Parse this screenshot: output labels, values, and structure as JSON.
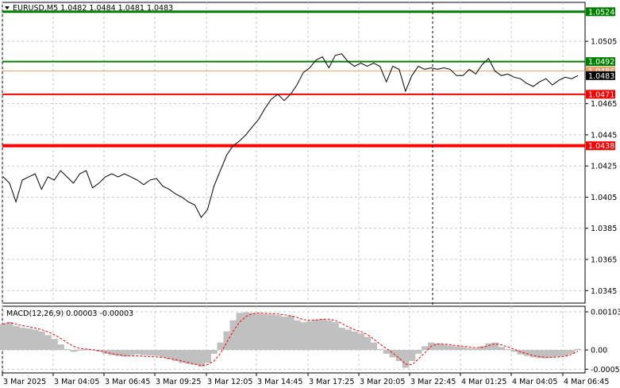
{
  "header": {
    "symbol": "EURUSD,M5",
    "ohlc": "1.0482 1.0484 1.0481 1.0483"
  },
  "indicator": {
    "label": "MACD(12,26,9) 0.00003 -0.00003",
    "axis_labels": [
      "0.00103",
      "0.00",
      "-0.00052"
    ]
  },
  "price_axis": [
    "1.0505",
    "1.0465",
    "1.0445",
    "1.0425",
    "1.0405",
    "1.0385",
    "1.0365",
    "1.0345"
  ],
  "time_axis": [
    "3 Mar 2025",
    "3 Mar 04:05",
    "3 Mar 06:45",
    "3 Mar 09:25",
    "3 Mar 12:05",
    "3 Mar 14:45",
    "3 Mar 17:25",
    "3 Mar 20:05",
    "3 Mar 22:45",
    "4 Mar 01:25",
    "4 Mar 04:05",
    "4 Mar 06:45"
  ],
  "levels": [
    {
      "price": 1.0524,
      "label": "1.0524",
      "color": "#008000",
      "width": 3
    },
    {
      "price": 1.0492,
      "label": "1.0492",
      "color": "#008000",
      "width": 2
    },
    {
      "price": 1.0486,
      "label": "1.0486",
      "color": "#e8a070",
      "width": 1
    },
    {
      "price": 1.0471,
      "label": "1.0471",
      "color": "#ff0000",
      "width": 2
    },
    {
      "price": 1.0438,
      "label": "1.0438",
      "color": "#ff0000",
      "width": 4
    }
  ],
  "current_price": "1.0483",
  "colors": {
    "price_line": "#000000",
    "grid": "#c8c8c8",
    "histogram": "#c0c0c0",
    "signal": "#ff0000",
    "current_price_bg": "#000000"
  },
  "chart_data": {
    "type": "line",
    "ylim": [
      1.0337,
      1.053
    ],
    "times": [
      "3 Mar 2025",
      "3 Mar 04:05",
      "3 Mar 06:45",
      "3 Mar 09:25",
      "3 Mar 12:05",
      "3 Mar 14:45",
      "3 Mar 17:25",
      "3 Mar 20:05",
      "3 Mar 22:45",
      "4 Mar 01:25",
      "4 Mar 04:05",
      "4 Mar 06:45"
    ],
    "series": [
      {
        "values": [
          1.0418,
          1.0414,
          1.0402,
          1.0416,
          1.0418,
          1.042,
          1.041,
          1.0418,
          1.0416,
          1.0422,
          1.0418,
          1.0414,
          1.042,
          1.0422,
          1.0411,
          1.0414,
          1.0418,
          1.042,
          1.0418,
          1.042,
          1.0418,
          1.0416,
          1.0413,
          1.0416,
          1.0417,
          1.0412,
          1.041,
          1.0407,
          1.0405,
          1.0402,
          1.04,
          1.0392,
          1.0397,
          1.0412,
          1.0422,
          1.0432,
          1.0438,
          1.0441,
          1.0445,
          1.045,
          1.0455,
          1.0462,
          1.0468,
          1.0471,
          1.0467,
          1.0471,
          1.0477,
          1.0485,
          1.0488,
          1.0493,
          1.0495,
          1.0488,
          1.0496,
          1.0497,
          1.0492,
          1.0489,
          1.0491,
          1.0489,
          1.0491,
          1.0489,
          1.0479,
          1.0489,
          1.0487,
          1.0473,
          1.0483,
          1.0489,
          1.0487,
          1.0488,
          1.0487,
          1.0488,
          1.0487,
          1.0483,
          1.0483,
          1.0487,
          1.0484,
          1.049,
          1.0494,
          1.0486,
          1.0483,
          1.0484,
          1.0482,
          1.0481,
          1.0478,
          1.0476,
          1.0479,
          1.0481,
          1.0477,
          1.048,
          1.0482,
          1.0481,
          1.0483
        ]
      }
    ],
    "macd": {
      "histogram": [
        0.0007,
        0.00075,
        0.00065,
        0.0006,
        0.00058,
        0.00055,
        0.0005,
        0.0004,
        0.0003,
        0.00015,
        2e-05,
        -5e-05,
        -2e-05,
        3e-05,
        0.0,
        -4e-05,
        -0.0001,
        -0.00014,
        -0.00016,
        -0.00018,
        -0.00014,
        -0.00012,
        -0.00014,
        -0.00015,
        -0.00016,
        -0.0002,
        -0.00025,
        -0.0003,
        -0.00035,
        -0.00038,
        -0.0004,
        -0.00045,
        -0.00035,
        -0.0001,
        0.0002,
        0.0005,
        0.0008,
        0.001,
        0.00102,
        0.001,
        0.00098,
        0.00097,
        0.00096,
        0.00094,
        0.0009,
        0.00092,
        0.0008,
        0.00075,
        0.00078,
        0.00082,
        0.00084,
        0.0008,
        0.00075,
        0.0006,
        0.00055,
        0.0005,
        0.00045,
        0.00035,
        0.0002,
        2e-05,
        -0.0001,
        -0.0002,
        -0.0003,
        -0.00048,
        -0.0003,
        -0.0001,
        0.0001,
        0.0002,
        0.00018,
        0.00015,
        0.00012,
        0.0001,
        8e-05,
        5e-05,
        4e-05,
        0.0001,
        0.00018,
        0.0002,
        8e-05,
        2e-05,
        -5e-05,
        -0.00012,
        -0.00016,
        -0.0002,
        -0.00022,
        -0.00022,
        -0.0002,
        -0.00018,
        -0.00016,
        -0.0001,
        3e-05
      ],
      "signal": [
        0.0007,
        0.00074,
        0.0007,
        0.00066,
        0.00063,
        0.00059,
        0.00055,
        0.00049,
        0.00041,
        0.00031,
        0.0002,
        0.0001,
        4e-05,
        2e-05,
        1e-05,
        -2e-05,
        -6e-05,
        -0.0001,
        -0.00013,
        -0.00015,
        -0.00016,
        -0.00016,
        -0.00017,
        -0.00018,
        -0.00019,
        -0.0002,
        -0.00023,
        -0.00026,
        -0.0003,
        -0.00034,
        -0.00038,
        -0.00042,
        -0.0004,
        -0.0003,
        -0.0001,
        0.0002,
        0.0005,
        0.00075,
        0.0009,
        0.00098,
        0.001,
        0.00099,
        0.00098,
        0.00097,
        0.00095,
        0.00092,
        0.00088,
        0.00082,
        0.0008,
        0.00081,
        0.00083,
        0.00083,
        0.0008,
        0.00072,
        0.00062,
        0.00055,
        0.0005,
        0.00042,
        0.0003,
        0.00016,
        4e-05,
        -8e-05,
        -0.00022,
        -0.00038,
        -0.0004,
        -0.00025,
        -8e-05,
        0.0001,
        0.00016,
        0.00016,
        0.00014,
        0.00012,
        0.0001,
        8e-05,
        6e-05,
        7e-05,
        0.00012,
        0.00016,
        0.00014,
        8e-05,
        2e-05,
        -5e-05,
        -0.0001,
        -0.00015,
        -0.00018,
        -0.0002,
        -0.0002,
        -0.00019,
        -0.00017,
        -0.00012,
        -3e-05
      ],
      "ylim": [
        -0.00062,
        0.00118
      ]
    }
  }
}
